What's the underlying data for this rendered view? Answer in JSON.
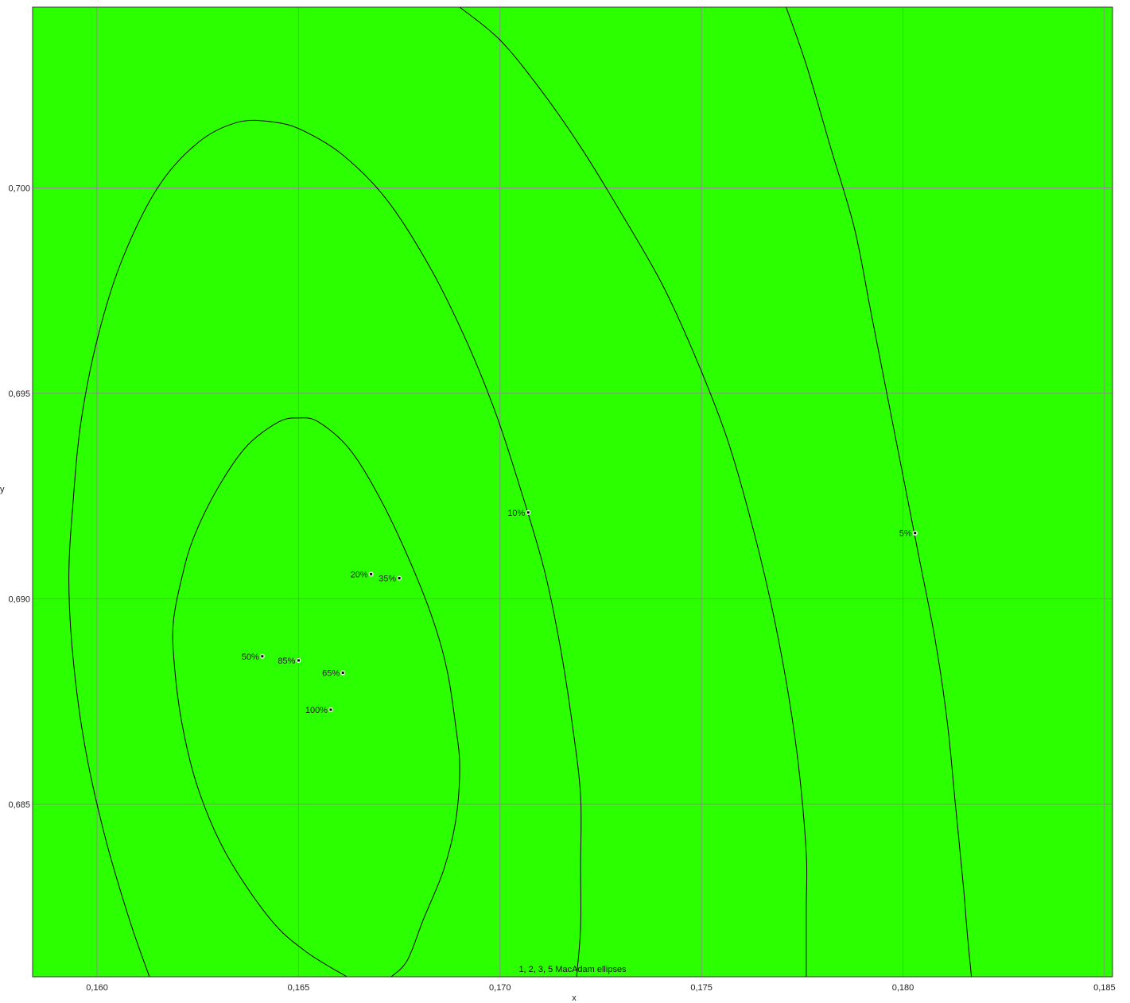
{
  "chart_data": {
    "type": "scatter",
    "title": "",
    "xlabel": "x",
    "ylabel": "y",
    "xlim": [
      0.1584,
      0.1852
    ],
    "ylim": [
      0.6808,
      0.7044
    ],
    "x_ticks": [
      0.16,
      0.165,
      0.17,
      0.175,
      0.18,
      0.185
    ],
    "x_tick_labels": [
      "0,160",
      "0,165",
      "0,170",
      "0,175",
      "0,180",
      "0,185"
    ],
    "y_ticks": [
      0.685,
      0.69,
      0.695,
      0.7
    ],
    "y_tick_labels": [
      "0,685",
      "0,690",
      "0,695",
      "0,700"
    ],
    "grid": true,
    "background_color": "#2cff00",
    "grid_color": "#8c8c8c",
    "line_color": "#000000",
    "annotation": "1, 2, 3, 5  MacAdam ellipses",
    "points": [
      {
        "label": "5%",
        "x": 0.1803,
        "y": 0.6916
      },
      {
        "label": "10%",
        "x": 0.1707,
        "y": 0.6921
      },
      {
        "label": "20%",
        "x": 0.1668,
        "y": 0.6906
      },
      {
        "label": "35%",
        "x": 0.1675,
        "y": 0.6905
      },
      {
        "label": "50%",
        "x": 0.1641,
        "y": 0.6886
      },
      {
        "label": "85%",
        "x": 0.165,
        "y": 0.6885
      },
      {
        "label": "65%",
        "x": 0.1661,
        "y": 0.6882
      },
      {
        "label": "100%",
        "x": 0.1658,
        "y": 0.6873
      }
    ],
    "contours": [
      {
        "name": "1",
        "points": [
          [
            0.1662,
            0.6808
          ],
          [
            0.1652,
            0.6814
          ],
          [
            0.1643,
            0.6822
          ],
          [
            0.1632,
            0.6838
          ],
          [
            0.1625,
            0.6854
          ],
          [
            0.1621,
            0.687
          ],
          [
            0.1619,
            0.6886
          ],
          [
            0.1619,
            0.6895
          ],
          [
            0.1621,
            0.6905
          ],
          [
            0.1624,
            0.6915
          ],
          [
            0.163,
            0.6927
          ],
          [
            0.1637,
            0.6937
          ],
          [
            0.1645,
            0.6943
          ],
          [
            0.165,
            0.6944
          ],
          [
            0.1655,
            0.6943
          ],
          [
            0.1663,
            0.6936
          ],
          [
            0.1671,
            0.6923
          ],
          [
            0.1679,
            0.6906
          ],
          [
            0.1684,
            0.6893
          ],
          [
            0.1687,
            0.6882
          ],
          [
            0.1689,
            0.6869
          ],
          [
            0.169,
            0.6859
          ],
          [
            0.1689,
            0.6846
          ],
          [
            0.1686,
            0.6834
          ],
          [
            0.1681,
            0.6822
          ],
          [
            0.1677,
            0.6812
          ],
          [
            0.1673,
            0.6808
          ]
        ]
      },
      {
        "name": "2",
        "points": [
          [
            0.1613,
            0.6808
          ],
          [
            0.1608,
            0.6822
          ],
          [
            0.1602,
            0.6842
          ],
          [
            0.1597,
            0.6864
          ],
          [
            0.1594,
            0.6886
          ],
          [
            0.1593,
            0.6905
          ],
          [
            0.1594,
            0.6923
          ],
          [
            0.1596,
            0.6943
          ],
          [
            0.16,
            0.6963
          ],
          [
            0.1606,
            0.6982
          ],
          [
            0.1615,
            0.7
          ],
          [
            0.1625,
            0.7011
          ],
          [
            0.1635,
            0.7016
          ],
          [
            0.1644,
            0.7016
          ],
          [
            0.1651,
            0.7014
          ],
          [
            0.1661,
            0.7008
          ],
          [
            0.1672,
            0.6997
          ],
          [
            0.1683,
            0.698
          ],
          [
            0.1692,
            0.6962
          ],
          [
            0.1699,
            0.6945
          ],
          [
            0.1705,
            0.6927
          ],
          [
            0.1711,
            0.6907
          ],
          [
            0.1715,
            0.6888
          ],
          [
            0.1718,
            0.6869
          ],
          [
            0.172,
            0.6852
          ],
          [
            0.172,
            0.6835
          ],
          [
            0.172,
            0.682
          ],
          [
            0.1719,
            0.6808
          ]
        ]
      },
      {
        "name": "3",
        "points": [
          [
            0.169,
            0.7044
          ],
          [
            0.17,
            0.7036
          ],
          [
            0.171,
            0.7024
          ],
          [
            0.172,
            0.701
          ],
          [
            0.173,
            0.6994
          ],
          [
            0.174,
            0.6977
          ],
          [
            0.1748,
            0.696
          ],
          [
            0.1756,
            0.694
          ],
          [
            0.1762,
            0.692
          ],
          [
            0.1767,
            0.69
          ],
          [
            0.1771,
            0.688
          ],
          [
            0.1774,
            0.686
          ],
          [
            0.1776,
            0.6838
          ],
          [
            0.1776,
            0.6825
          ],
          [
            0.1776,
            0.6808
          ]
        ]
      },
      {
        "name": "5",
        "points": [
          [
            0.1771,
            0.7044
          ],
          [
            0.1776,
            0.703
          ],
          [
            0.1782,
            0.701
          ],
          [
            0.1788,
            0.699
          ],
          [
            0.1792,
            0.697
          ],
          [
            0.1796,
            0.695
          ],
          [
            0.18,
            0.693
          ],
          [
            0.1804,
            0.691
          ],
          [
            0.1808,
            0.689
          ],
          [
            0.1811,
            0.687
          ],
          [
            0.1813,
            0.685
          ],
          [
            0.1815,
            0.683
          ],
          [
            0.1816,
            0.6818
          ],
          [
            0.1817,
            0.6808
          ]
        ]
      }
    ]
  }
}
